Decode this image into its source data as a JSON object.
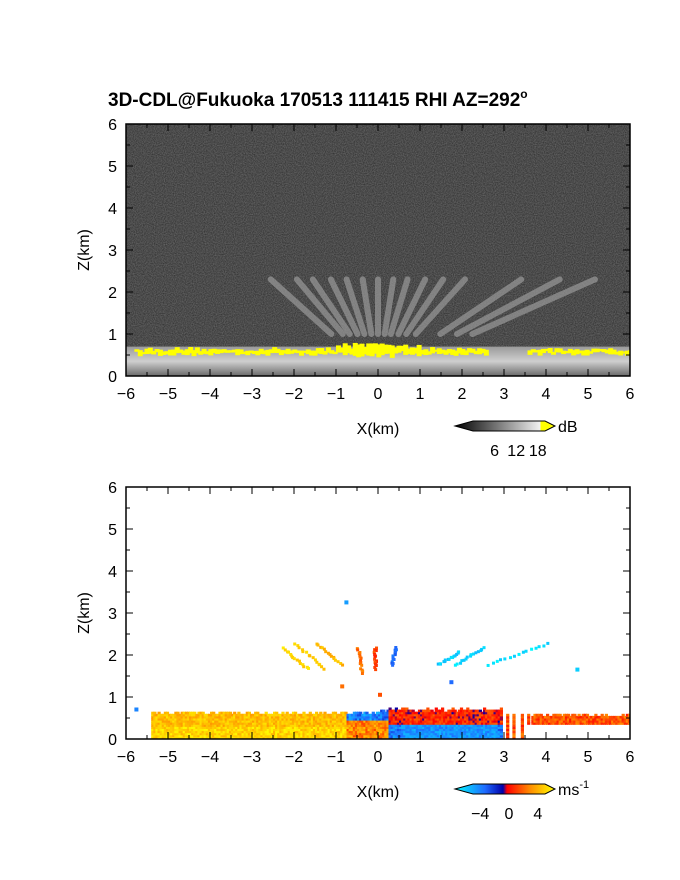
{
  "figure": {
    "title_main": "3D-CDL@Fukuoka 170513 111415 RHI AZ=292",
    "title_degree": "o"
  },
  "chart_data": [
    {
      "type": "heatmap",
      "panel": "SNR",
      "xlabel": "X(km)",
      "ylabel": "Z(km)",
      "xlim": [
        -6,
        6
      ],
      "ylim": [
        0,
        6
      ],
      "xticks": [
        -6,
        -5,
        -4,
        -3,
        -2,
        -1,
        0,
        1,
        2,
        3,
        4,
        5,
        6
      ],
      "yticks": [
        0,
        1,
        2,
        3,
        4,
        5,
        6
      ],
      "colorbar": {
        "unit": "dB",
        "ticks": [
          6,
          12,
          18
        ],
        "range": [
          0,
          20
        ],
        "colormap": "grayscale, saturated yellow >18",
        "saturation_color": "#ffff00"
      },
      "background_color": "#2e2e2e",
      "features": {
        "boundary_layer_top_km": 0.7,
        "boundary_layer_x_range_km": [
          -6,
          6
        ],
        "saturated_top_x_range_km": [
          -5.8,
          6
        ],
        "beams_top_km": 2.3,
        "beam_angles_from_vertical_deg": [
          -48,
          -40,
          -34,
          -26,
          -18,
          -9,
          0,
          9,
          17,
          26,
          34,
          42,
          56,
          62,
          66
        ]
      }
    },
    {
      "type": "heatmap",
      "panel": "Doppler velocity",
      "xlabel": "X(km)",
      "ylabel": "Z(km)",
      "xlim": [
        -6,
        6
      ],
      "ylim": [
        0,
        6
      ],
      "xticks": [
        -6,
        -5,
        -4,
        -3,
        -2,
        -1,
        0,
        1,
        2,
        3,
        4,
        5,
        6
      ],
      "yticks": [
        0,
        1,
        2,
        3,
        4,
        5,
        6
      ],
      "colorbar": {
        "unit": "ms",
        "unit_exponent": "-1",
        "ticks": [
          -4,
          0,
          4
        ],
        "range": [
          -5,
          5
        ],
        "colormap": "cyan-blue-red-yellow"
      },
      "features": {
        "boundary_layer_top_km": 0.65,
        "valid_x_range_km": [
          -5.4,
          6
        ],
        "gap_x_range_km": [
          2.9,
          3.6
        ],
        "negative_velocity_x_range_km": [
          -0.8,
          3.3
        ],
        "positive_velocity_x_range_km": [
          -5.4,
          -0.2
        ],
        "aloft_segments": [
          {
            "x0": -2.3,
            "z0": 2.2,
            "x1": -1.7,
            "z1": 1.7,
            "v": 4.2
          },
          {
            "x0": -2.0,
            "z0": 2.3,
            "x1": -1.3,
            "z1": 1.7,
            "v": 3.8
          },
          {
            "x0": -1.5,
            "z0": 2.3,
            "x1": -0.9,
            "z1": 1.8,
            "v": 3.5
          },
          {
            "x0": -0.5,
            "z0": 2.2,
            "x1": -0.4,
            "z1": 1.6,
            "v": 2.0
          },
          {
            "x0": -0.1,
            "z0": 2.2,
            "x1": -0.1,
            "z1": 1.7,
            "v": 1.2
          },
          {
            "x0": 0.4,
            "z0": 2.2,
            "x1": 0.3,
            "z1": 1.8,
            "v": -2.0
          },
          {
            "x0": 1.4,
            "z0": 1.8,
            "x1": 1.9,
            "z1": 2.1,
            "v": -4.0
          },
          {
            "x0": 1.8,
            "z0": 1.8,
            "x1": 2.5,
            "z1": 2.2,
            "v": -4.2
          },
          {
            "x0": 2.6,
            "z0": 1.8,
            "x1": 4.0,
            "z1": 2.3,
            "v": -4.4
          }
        ],
        "isolated_points": [
          {
            "x": -0.8,
            "z": 3.3,
            "v": -3.0
          },
          {
            "x": 4.7,
            "z": 1.7,
            "v": -4.0
          },
          {
            "x": -0.9,
            "z": 1.3,
            "v": 2.0
          },
          {
            "x": 0.0,
            "z": 1.1,
            "v": 1.5
          },
          {
            "x": 1.7,
            "z": 1.4,
            "v": -2.0
          },
          {
            "x": -5.8,
            "z": 0.75,
            "v": -2.5
          }
        ]
      }
    }
  ]
}
